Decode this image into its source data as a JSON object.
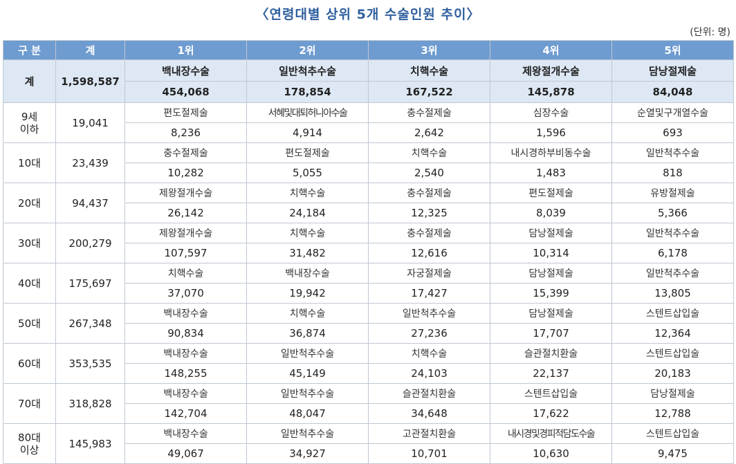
{
  "title": "〈연령대별 상위 5개 수술인원 추이〉",
  "unit": "(단위: 명)",
  "headers": [
    "구 분",
    "계",
    "1위",
    "2위",
    "3위",
    "4위",
    "5위"
  ],
  "total_row": {
    "label": "계",
    "total": "1,598,587",
    "names": [
      "백내장수술",
      "일반척추수술",
      "치핵수술",
      "제왕절개수술",
      "담낭절제술"
    ],
    "values": [
      "454,068",
      "178,854",
      "167,522",
      "145,878",
      "84,048"
    ]
  },
  "rows": [
    {
      "label": "9세\n이하",
      "total": "19,041",
      "names": [
        "편도절제술",
        "서혜및대퇴허니아수술",
        "충수절제술",
        "심장수술",
        "순열및구개열수술"
      ],
      "values": [
        "8,236",
        "4,914",
        "2,642",
        "1,596",
        "693"
      ]
    },
    {
      "label": "10대",
      "total": "23,439",
      "names": [
        "충수절제술",
        "편도절제술",
        "치핵수술",
        "내시경하부비동수술",
        "일반척추수술"
      ],
      "values": [
        "10,282",
        "5,055",
        "2,540",
        "1,483",
        "818"
      ]
    },
    {
      "label": "20대",
      "total": "94,437",
      "names": [
        "제왕절개수술",
        "치핵수술",
        "충수절제술",
        "편도절제술",
        "유방절제술"
      ],
      "values": [
        "26,142",
        "24,184",
        "12,325",
        "8,039",
        "5,366"
      ]
    },
    {
      "label": "30대",
      "total": "200,279",
      "names": [
        "제왕절개수술",
        "치핵수술",
        "충수절제술",
        "담낭절제술",
        "일반척추수술"
      ],
      "values": [
        "107,597",
        "31,482",
        "12,616",
        "10,314",
        "6,178"
      ]
    },
    {
      "label": "40대",
      "total": "175,697",
      "names": [
        "치핵수술",
        "백내장수술",
        "자궁절제술",
        "담낭절제술",
        "일반척추수술"
      ],
      "values": [
        "37,070",
        "19,942",
        "17,427",
        "15,399",
        "13,805"
      ]
    },
    {
      "label": "50대",
      "total": "267,348",
      "names": [
        "백내장수술",
        "치핵수술",
        "일반척추수술",
        "담낭절제술",
        "스텐트삽입술"
      ],
      "values": [
        "90,834",
        "36,874",
        "27,236",
        "17,707",
        "12,364"
      ]
    },
    {
      "label": "60대",
      "total": "353,535",
      "names": [
        "백내장수술",
        "일반척추수술",
        "치핵수술",
        "슬관절치환술",
        "스텐트삽입술"
      ],
      "values": [
        "148,255",
        "45,149",
        "24,103",
        "22,137",
        "20,183"
      ]
    },
    {
      "label": "70대",
      "total": "318,828",
      "names": [
        "백내장수술",
        "일반척추수술",
        "슬관절치환술",
        "스텐트삽입술",
        "담낭절제술"
      ],
      "values": [
        "142,704",
        "48,047",
        "34,648",
        "17,622",
        "12,788"
      ]
    },
    {
      "label": "80대\n이상",
      "total": "145,983",
      "names": [
        "백내장수술",
        "일반척추수술",
        "고관절치환술",
        "내시경및경피적담도수술",
        "스텐트삽입술"
      ],
      "values": [
        "49,067",
        "34,927",
        "10,701",
        "10,630",
        "9,475"
      ]
    }
  ]
}
